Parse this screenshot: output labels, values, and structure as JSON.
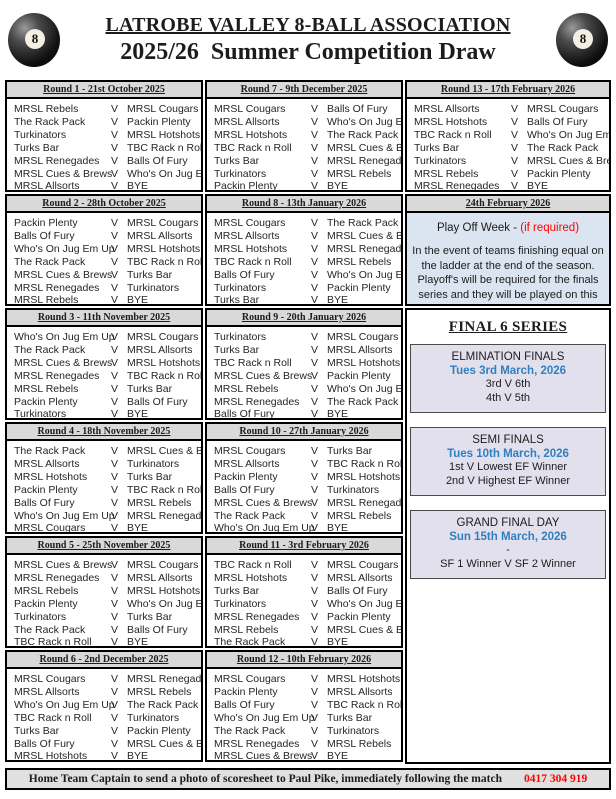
{
  "header": {
    "title_line1": "LATROBE VALLEY 8-BALL ASSOCIATION",
    "title_line2": "2025/26  Summer Competition Draw",
    "eight_ball_glyph": "8"
  },
  "versus_label": "V",
  "rounds": [
    {
      "title": "Round 1 - 21st October 2025",
      "matches": [
        [
          "MRSL Rebels",
          "MRSL Cougars"
        ],
        [
          "The Rack Pack",
          "Packin Plenty"
        ],
        [
          "Turkinators",
          "MRSL Hotshots"
        ],
        [
          "Turks Bar",
          "TBC Rack n Roll"
        ],
        [
          "MRSL Renegades",
          "Balls Of Fury"
        ],
        [
          "MRSL Cues & Brews",
          "Who's On Jug Em Up"
        ],
        [
          "MRSL Allsorts",
          "BYE"
        ]
      ]
    },
    {
      "title": "Round 2 - 28th October 2025",
      "matches": [
        [
          "Packin Plenty",
          "MRSL Cougars"
        ],
        [
          "Balls Of Fury",
          "MRSL Allsorts"
        ],
        [
          "Who's On Jug Em Up",
          "MRSL Hotshots"
        ],
        [
          "The Rack Pack",
          "TBC Rack n Roll"
        ],
        [
          "MRSL Cues & Brews",
          "Turks Bar"
        ],
        [
          "MRSL Renegades",
          "Turkinators"
        ],
        [
          "MRSL Rebels",
          "BYE"
        ]
      ]
    },
    {
      "title": "Round 3 - 11th November 2025",
      "matches": [
        [
          "Who's On Jug Em Up",
          "MRSL Cougars"
        ],
        [
          "The Rack Pack",
          "MRSL Allsorts"
        ],
        [
          "MRSL Cues & Brews",
          "MRSL Hotshots"
        ],
        [
          "MRSL Renegades",
          "TBC Rack n Roll"
        ],
        [
          "MRSL Rebels",
          "Turks Bar"
        ],
        [
          "Packin Plenty",
          "Balls Of Fury"
        ],
        [
          "Turkinators",
          "BYE"
        ]
      ]
    },
    {
      "title": "Round 4 - 18th November 2025",
      "matches": [
        [
          "The Rack Pack",
          "MRSL Cues & Brews"
        ],
        [
          "MRSL Allsorts",
          "Turkinators"
        ],
        [
          "MRSL Hotshots",
          "Turks Bar"
        ],
        [
          "Packin Plenty",
          "TBC Rack n Roll"
        ],
        [
          "Balls Of Fury",
          "MRSL Rebels"
        ],
        [
          "Who's On Jug Em Up",
          "MRSL Renegades"
        ],
        [
          "MRSL Cougars",
          "BYE"
        ]
      ]
    },
    {
      "title": "Round 5 - 25th November 2025",
      "matches": [
        [
          "MRSL Cues & Brews",
          "MRSL Cougars"
        ],
        [
          "MRSL Renegades",
          "MRSL Allsorts"
        ],
        [
          "MRSL Rebels",
          "MRSL Hotshots"
        ],
        [
          "Packin Plenty",
          "Who's On Jug Em Up"
        ],
        [
          "Turkinators",
          "Turks Bar"
        ],
        [
          "The Rack Pack",
          "Balls Of Fury"
        ],
        [
          "TBC Rack n Roll",
          "BYE"
        ]
      ]
    },
    {
      "title": "Round 6 - 2nd December 2025",
      "matches": [
        [
          "MRSL Cougars",
          "MRSL Renegades"
        ],
        [
          "MRSL Allsorts",
          "MRSL Rebels"
        ],
        [
          "Who's On Jug Em Up",
          "The Rack Pack"
        ],
        [
          "TBC Rack n Roll",
          "Turkinators"
        ],
        [
          "Turks Bar",
          "Packin Plenty"
        ],
        [
          "Balls Of Fury",
          "MRSL Cues & Brews"
        ],
        [
          "MRSL Hotshots",
          "BYE"
        ]
      ]
    },
    {
      "title": "Round 7 - 9th December 2025",
      "matches": [
        [
          "MRSL Cougars",
          "Balls Of Fury"
        ],
        [
          "MRSL Allsorts",
          "Who's On Jug Em Up"
        ],
        [
          "MRSL Hotshots",
          "The Rack Pack"
        ],
        [
          "TBC Rack n Roll",
          "MRSL Cues & Brews"
        ],
        [
          "Turks Bar",
          "MRSL Renegades"
        ],
        [
          "Turkinators",
          "MRSL Rebels"
        ],
        [
          "Packin Plenty",
          "BYE"
        ]
      ]
    },
    {
      "title": "Round 8 - 13th January 2026",
      "matches": [
        [
          "MRSL Cougars",
          "The Rack Pack"
        ],
        [
          "MRSL Allsorts",
          "MRSL Cues & Brews"
        ],
        [
          "MRSL Hotshots",
          "MRSL Renegades"
        ],
        [
          "TBC Rack n Roll",
          "MRSL Rebels"
        ],
        [
          "Balls Of Fury",
          "Who's On Jug Em Up"
        ],
        [
          "Turkinators",
          "Packin Plenty"
        ],
        [
          "Turks Bar",
          "BYE"
        ]
      ]
    },
    {
      "title": "Round 9 - 20th January 2026",
      "matches": [
        [
          "Turkinators",
          "MRSL Cougars"
        ],
        [
          "Turks Bar",
          "MRSL Allsorts"
        ],
        [
          "TBC Rack n Roll",
          "MRSL Hotshots"
        ],
        [
          "MRSL Cues & Brews",
          "Packin Plenty"
        ],
        [
          "MRSL Rebels",
          "Who's On Jug Em Up"
        ],
        [
          "MRSL Renegades",
          "The Rack Pack"
        ],
        [
          "Balls Of Fury",
          "BYE"
        ]
      ]
    },
    {
      "title": "Round 10 - 27th January 2026",
      "matches": [
        [
          "MRSL Cougars",
          "Turks Bar"
        ],
        [
          "MRSL Allsorts",
          "TBC Rack n Roll"
        ],
        [
          "Packin Plenty",
          "MRSL Hotshots"
        ],
        [
          "Balls Of Fury",
          "Turkinators"
        ],
        [
          "MRSL Cues & Brews",
          "MRSL Renegades"
        ],
        [
          "The Rack Pack",
          "MRSL Rebels"
        ],
        [
          "Who's On Jug Em Up",
          "BYE"
        ]
      ]
    },
    {
      "title": "Round 11 - 3rd February 2026",
      "matches": [
        [
          "TBC Rack n Roll",
          "MRSL Cougars"
        ],
        [
          "MRSL Hotshots",
          "MRSL Allsorts"
        ],
        [
          "Turks Bar",
          "Balls Of Fury"
        ],
        [
          "Turkinators",
          "Who's On Jug Em Up"
        ],
        [
          "MRSL Renegades",
          "Packin Plenty"
        ],
        [
          "MRSL Rebels",
          "MRSL Cues & Brews"
        ],
        [
          "The Rack Pack",
          "BYE"
        ]
      ]
    },
    {
      "title": "Round 12 - 10th February 2026",
      "matches": [
        [
          "MRSL Cougars",
          "MRSL Hotshots"
        ],
        [
          "Packin Plenty",
          "MRSL Allsorts"
        ],
        [
          "Balls Of Fury",
          "TBC Rack n Roll"
        ],
        [
          "Who's On Jug Em Up",
          "Turks Bar"
        ],
        [
          "The Rack Pack",
          "Turkinators"
        ],
        [
          "MRSL Renegades",
          "MRSL Rebels"
        ],
        [
          "MRSL Cues & Brews",
          "BYE"
        ]
      ]
    },
    {
      "title": "Round 13 - 17th February 2026",
      "matches": [
        [
          "MRSL Allsorts",
          "MRSL Cougars"
        ],
        [
          "MRSL Hotshots",
          "Balls Of Fury"
        ],
        [
          "TBC Rack n Roll",
          "Who's On Jug Em Up"
        ],
        [
          "Turks Bar",
          "The Rack Pack"
        ],
        [
          "Turkinators",
          "MRSL Cues & Brews"
        ],
        [
          "MRSL Rebels",
          "Packin Plenty"
        ],
        [
          "MRSL Renegades",
          "BYE"
        ]
      ]
    }
  ],
  "playoff": {
    "header": "24th February 2026",
    "title": "Play Off Week - ",
    "title_note": "(if required)",
    "body": "In the event of teams finishing equal on the ladder at the end of the season. Playoff's will be required for the finals series and they will be played on this Tuesday night"
  },
  "finals": {
    "title": "FINAL 6 SERIES",
    "blocks": [
      {
        "title": "ELMINATION FINALS",
        "date": "Tues 3rd March, 2026",
        "lines": [
          "3rd V 6th",
          "4th V 5th"
        ]
      },
      {
        "title": "SEMI FINALS",
        "date": "Tues 10th March, 2026",
        "lines": [
          "1st V Lowest EF Winner",
          "2nd V Highest EF Winner"
        ]
      },
      {
        "title": "GRAND FINAL DAY",
        "date": "Sun 15th March, 2026",
        "lines": [
          "-",
          "SF 1 Winner V SF 2 Winner"
        ]
      }
    ]
  },
  "footer": {
    "text": "Home Team Captain to send a photo of scoresheet to Paul Pike, immediately following the match",
    "phone": "0417 304 919"
  },
  "colors": {
    "round_header_gray": "#d9d9d9",
    "playoff_blue": "#dbe5f1",
    "finals_lavender": "#e3e0ed",
    "date_blue": "#2f7fc1",
    "alert_red": "#ff0000",
    "footer_gray": "#e0e0e0"
  }
}
